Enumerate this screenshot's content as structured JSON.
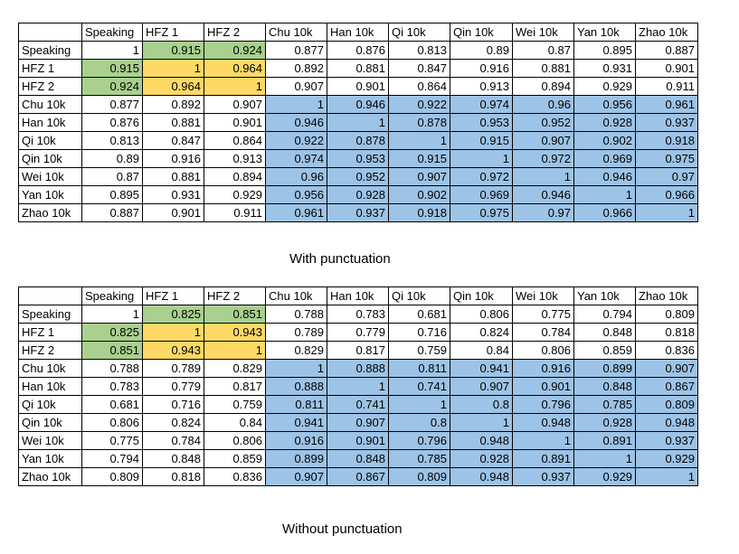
{
  "tables": [
    {
      "caption": "With punctuation",
      "headers": [
        "",
        "Speaking",
        "HFZ 1",
        "HFZ 2",
        "Chu 10k",
        "Han 10k",
        "Qi 10k",
        "Qin 10k",
        "Wei 10k",
        "Yan 10k",
        "Zhao 10k"
      ],
      "rows": [
        {
          "label": "Speaking",
          "values": [
            "1",
            "0.915",
            "0.924",
            "0.877",
            "0.876",
            "0.813",
            "0.89",
            "0.87",
            "0.895",
            "0.887"
          ]
        },
        {
          "label": "HFZ 1",
          "values": [
            "0.915",
            "1",
            "0.964",
            "0.892",
            "0.881",
            "0.847",
            "0.916",
            "0.881",
            "0.931",
            "0.901"
          ]
        },
        {
          "label": "HFZ 2",
          "values": [
            "0.924",
            "0.964",
            "1",
            "0.907",
            "0.901",
            "0.864",
            "0.913",
            "0.894",
            "0.929",
            "0.911"
          ]
        },
        {
          "label": "Chu 10k",
          "values": [
            "0.877",
            "0.892",
            "0.907",
            "1",
            "0.946",
            "0.922",
            "0.974",
            "0.96",
            "0.956",
            "0.961"
          ]
        },
        {
          "label": "Han 10k",
          "values": [
            "0.876",
            "0.881",
            "0.901",
            "0.946",
            "1",
            "0.878",
            "0.953",
            "0.952",
            "0.928",
            "0.937"
          ]
        },
        {
          "label": "Qi 10k",
          "values": [
            "0.813",
            "0.847",
            "0.864",
            "0.922",
            "0.878",
            "1",
            "0.915",
            "0.907",
            "0.902",
            "0.918"
          ]
        },
        {
          "label": "Qin 10k",
          "values": [
            "0.89",
            "0.916",
            "0.913",
            "0.974",
            "0.953",
            "0.915",
            "1",
            "0.972",
            "0.969",
            "0.975"
          ]
        },
        {
          "label": "Wei 10k",
          "values": [
            "0.87",
            "0.881",
            "0.894",
            "0.96",
            "0.952",
            "0.907",
            "0.972",
            "1",
            "0.946",
            "0.97"
          ]
        },
        {
          "label": "Yan 10k",
          "values": [
            "0.895",
            "0.931",
            "0.929",
            "0.956",
            "0.928",
            "0.902",
            "0.969",
            "0.946",
            "1",
            "0.966"
          ]
        },
        {
          "label": "Zhao 10k",
          "values": [
            "0.887",
            "0.901",
            "0.911",
            "0.961",
            "0.937",
            "0.918",
            "0.975",
            "0.97",
            "0.966",
            "1"
          ]
        }
      ]
    },
    {
      "caption": "Without punctuation",
      "headers": [
        "",
        "Speaking",
        "HFZ 1",
        "HFZ 2",
        "Chu 10k",
        "Han 10k",
        "Qi 10k",
        "Qin 10k",
        "Wei 10k",
        "Yan 10k",
        "Zhao 10k"
      ],
      "rows": [
        {
          "label": "Speaking",
          "values": [
            "1",
            "0.825",
            "0.851",
            "0.788",
            "0.783",
            "0.681",
            "0.806",
            "0.775",
            "0.794",
            "0.809"
          ]
        },
        {
          "label": "HFZ 1",
          "values": [
            "0.825",
            "1",
            "0.943",
            "0.789",
            "0.779",
            "0.716",
            "0.824",
            "0.784",
            "0.848",
            "0.818"
          ]
        },
        {
          "label": "HFZ 2",
          "values": [
            "0.851",
            "0.943",
            "1",
            "0.829",
            "0.817",
            "0.759",
            "0.84",
            "0.806",
            "0.859",
            "0.836"
          ]
        },
        {
          "label": "Chu 10k",
          "values": [
            "0.788",
            "0.789",
            "0.829",
            "1",
            "0.888",
            "0.811",
            "0.941",
            "0.916",
            "0.899",
            "0.907"
          ]
        },
        {
          "label": "Han 10k",
          "values": [
            "0.783",
            "0.779",
            "0.817",
            "0.888",
            "1",
            "0.741",
            "0.907",
            "0.901",
            "0.848",
            "0.867"
          ]
        },
        {
          "label": "Qi 10k",
          "values": [
            "0.681",
            "0.716",
            "0.759",
            "0.811",
            "0.741",
            "1",
            "0.8",
            "0.796",
            "0.785",
            "0.809"
          ]
        },
        {
          "label": "Qin 10k",
          "values": [
            "0.806",
            "0.824",
            "0.84",
            "0.941",
            "0.907",
            "0.8",
            "1",
            "0.948",
            "0.928",
            "0.948"
          ]
        },
        {
          "label": "Wei 10k",
          "values": [
            "0.775",
            "0.784",
            "0.806",
            "0.916",
            "0.901",
            "0.796",
            "0.948",
            "1",
            "0.891",
            "0.937"
          ]
        },
        {
          "label": "Yan 10k",
          "values": [
            "0.794",
            "0.848",
            "0.859",
            "0.899",
            "0.848",
            "0.785",
            "0.928",
            "0.891",
            "1",
            "0.929"
          ]
        },
        {
          "label": "Zhao 10k",
          "values": [
            "0.809",
            "0.818",
            "0.836",
            "0.907",
            "0.867",
            "0.809",
            "0.948",
            "0.937",
            "0.929",
            "1"
          ]
        }
      ]
    }
  ],
  "colors": {
    "green": "#a9d08e",
    "orange": "#ffd966",
    "blue": "#9dc3e6"
  }
}
